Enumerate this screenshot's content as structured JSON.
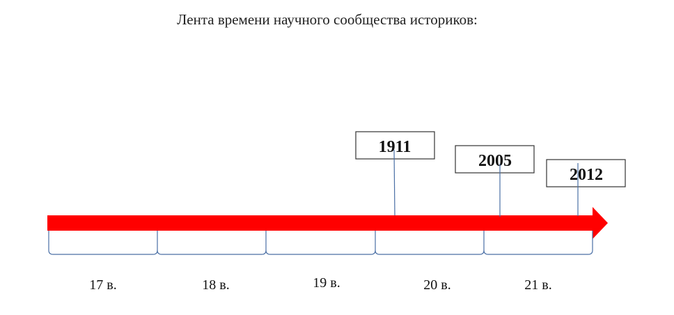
{
  "title": "Лента времени научного сообщества историков:",
  "periods": [
    "17 в.",
    "18 в.",
    "19 в.",
    "20 в.",
    "21 в."
  ],
  "events": [
    "1911",
    "2005",
    "2012"
  ]
}
